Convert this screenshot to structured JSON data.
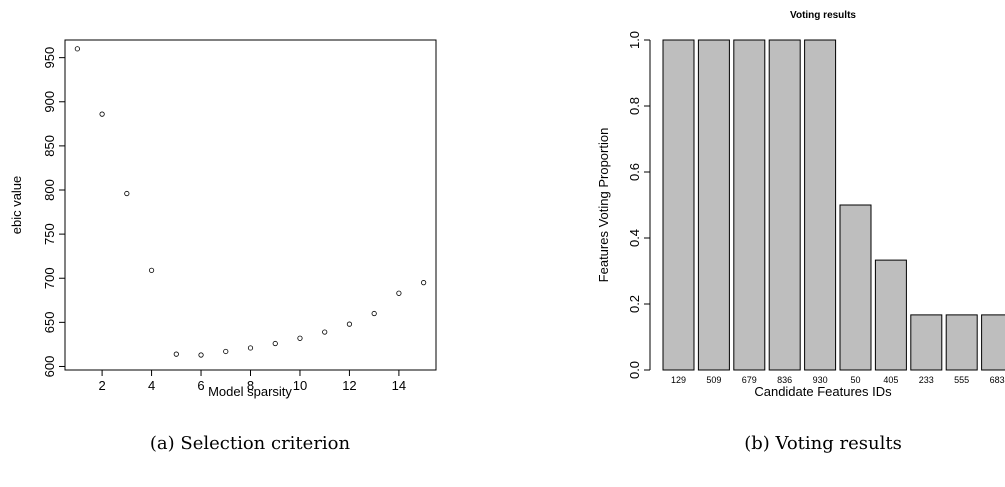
{
  "chart_data": [
    {
      "type": "scatter",
      "title": "",
      "xlabel": "Model sparsity",
      "ylabel": "ebic value",
      "xlim": [
        0.5,
        15.5
      ],
      "ylim": [
        596,
        970
      ],
      "xticks": [
        2,
        4,
        6,
        8,
        10,
        12,
        14
      ],
      "yticks": [
        600,
        650,
        700,
        750,
        800,
        850,
        900,
        950
      ],
      "grid": false,
      "x": [
        1,
        2,
        3,
        4,
        5,
        6,
        7,
        8,
        9,
        10,
        11,
        12,
        13,
        14,
        15
      ],
      "y": [
        960,
        886,
        796,
        709,
        614,
        613,
        617,
        621,
        626,
        632,
        639,
        648,
        660,
        683,
        695
      ],
      "caption": "(a) Selection criterion"
    },
    {
      "type": "bar",
      "title": "Voting results",
      "xlabel": "Candidate Features IDs",
      "ylabel": "Features Voting Proportion",
      "ylim": [
        0,
        1
      ],
      "yticks": [
        "0.0",
        "0.2",
        "0.4",
        "0.6",
        "0.8",
        "1.0"
      ],
      "grid": false,
      "bar_color": "#bebebe",
      "categories": [
        "129",
        "509",
        "679",
        "836",
        "930",
        "50",
        "405",
        "233",
        "555",
        "683"
      ],
      "values": [
        1.0,
        1.0,
        1.0,
        1.0,
        1.0,
        0.5,
        0.333,
        0.167,
        0.167,
        0.167
      ],
      "caption": "(b) Voting results"
    }
  ]
}
